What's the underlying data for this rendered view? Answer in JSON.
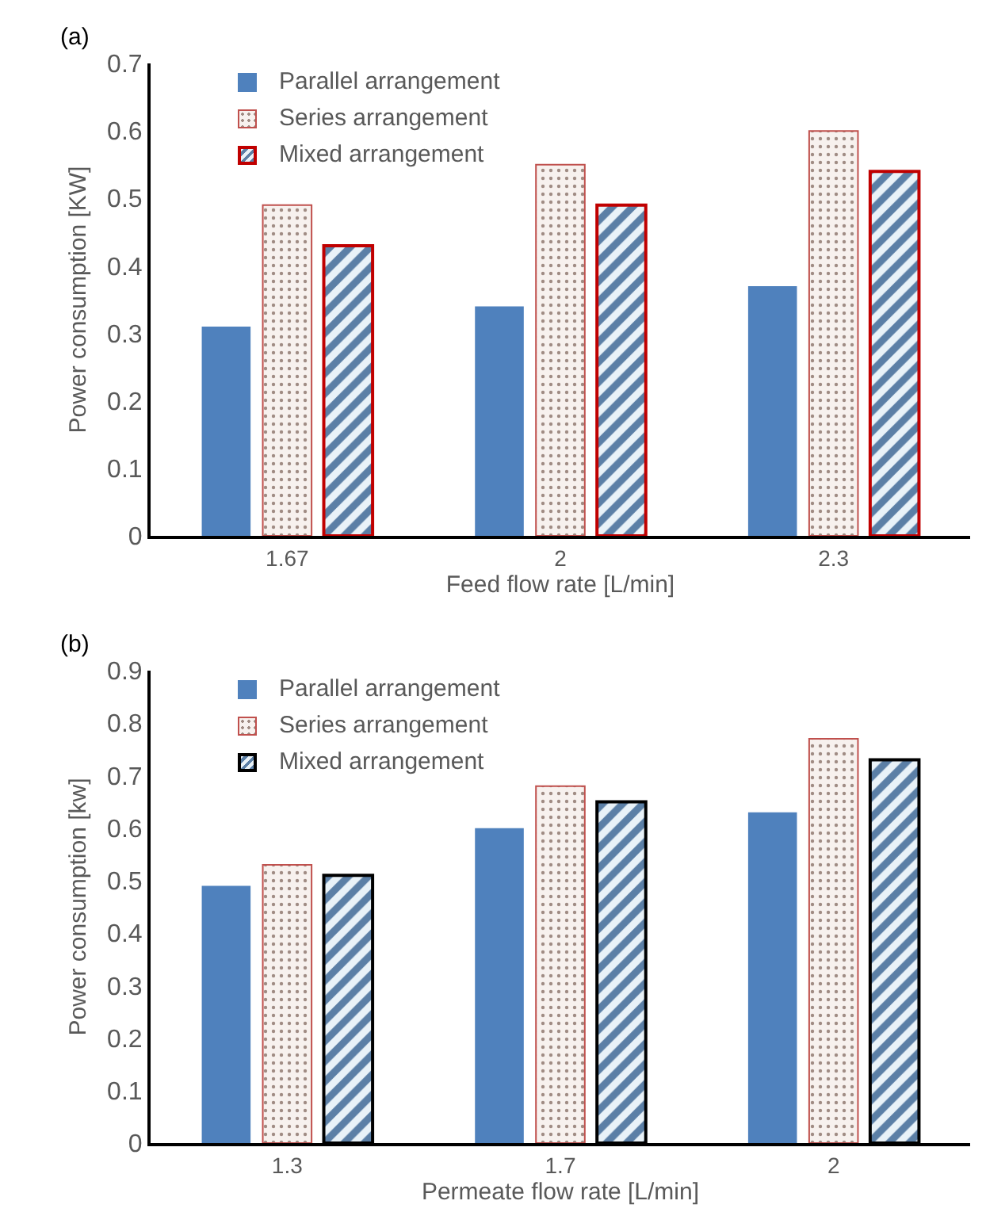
{
  "chart_data": [
    {
      "type": "bar",
      "annotations": [
        "(a)"
      ],
      "xlabel": "Feed flow rate [L/min]",
      "ylabel": "Power consumption [KW]",
      "categories": [
        "1.67",
        "2",
        "2.3"
      ],
      "series": [
        {
          "name": "Parallel arrangement",
          "color": "#4f81bd",
          "values": [
            0.31,
            0.34,
            0.37
          ]
        },
        {
          "name": "Series arrangement",
          "color": "#c0504d",
          "values": [
            0.49,
            0.55,
            0.6
          ]
        },
        {
          "name": "Mixed arrangement",
          "color": "#c00000",
          "values": [
            0.43,
            0.49,
            0.54
          ]
        }
      ],
      "ylim": [
        0,
        0.7
      ],
      "yticks": [
        0,
        0.1,
        0.2,
        0.3,
        0.4,
        0.5,
        0.6,
        0.7
      ],
      "grid": false,
      "legend": "top left"
    },
    {
      "type": "bar",
      "annotations": [
        "(b)"
      ],
      "xlabel": "Permeate flow rate [L/min]",
      "ylabel": "Power consumption [kw]",
      "categories": [
        "1.3",
        "1.7",
        "2"
      ],
      "series": [
        {
          "name": "Parallel arrangement",
          "color": "#4f81bd",
          "values": [
            0.49,
            0.6,
            0.63
          ]
        },
        {
          "name": "Series arrangement",
          "color": "#c0504d",
          "values": [
            0.53,
            0.68,
            0.77
          ]
        },
        {
          "name": "Mixed arrangement",
          "color": "#000000",
          "values": [
            0.51,
            0.65,
            0.73
          ]
        }
      ],
      "ylim": [
        0,
        0.9
      ],
      "yticks": [
        0,
        0.1,
        0.2,
        0.3,
        0.4,
        0.5,
        0.6,
        0.7,
        0.8,
        0.9
      ],
      "grid": false,
      "legend": "top left"
    }
  ]
}
